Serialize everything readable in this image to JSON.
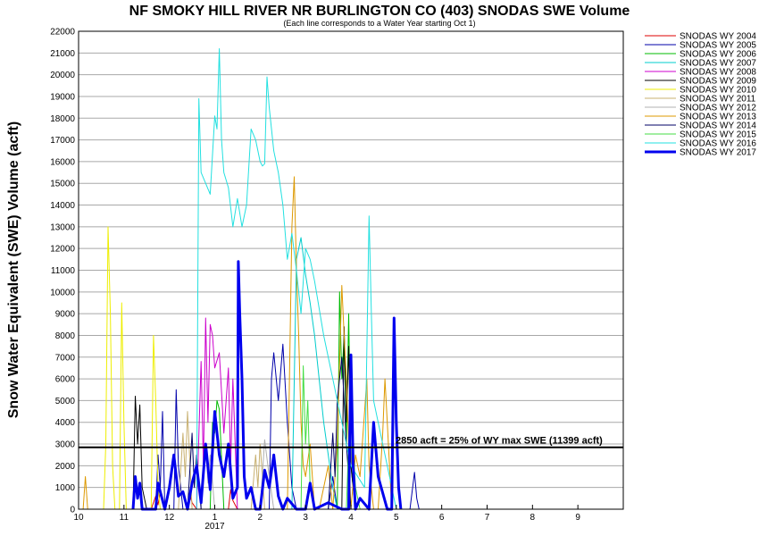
{
  "chart_data": {
    "type": "line",
    "title": "NF SMOKY HILL RIVER NR BURLINGTON CO (403) SNODAS SWE Volume",
    "subtitle": "(Each line corresponds to a Water Year starting Oct 1)",
    "ylabel": "Snow Water Equivalent (SWE) Volume (acft)",
    "xlabel": "",
    "ylim": [
      0,
      22000
    ],
    "xlim": [
      10,
      22
    ],
    "y_ticks": [
      0,
      1000,
      2000,
      3000,
      4000,
      5000,
      6000,
      7000,
      8000,
      9000,
      10000,
      11000,
      12000,
      13000,
      14000,
      15000,
      16000,
      17000,
      18000,
      19000,
      20000,
      21000,
      22000
    ],
    "x_ticks": [
      {
        "x": 10,
        "label": "10"
      },
      {
        "x": 11,
        "label": "11"
      },
      {
        "x": 12,
        "label": "12"
      },
      {
        "x": 13,
        "label": "1"
      },
      {
        "x": 14,
        "label": "2"
      },
      {
        "x": 15,
        "label": "3"
      },
      {
        "x": 16,
        "label": "4"
      },
      {
        "x": 17,
        "label": "5"
      },
      {
        "x": 18,
        "label": "6"
      },
      {
        "x": 19,
        "label": "7"
      },
      {
        "x": 20,
        "label": "8"
      },
      {
        "x": 21,
        "label": "9"
      }
    ],
    "year_label": {
      "x": 13,
      "text": "2017"
    },
    "grid": true,
    "legend_position": "top-right-outside",
    "reference_line": {
      "y": 2850,
      "label": "2850 acft = 25% of WY max SWE (11399 acft)",
      "color": "#000000"
    },
    "series": [
      {
        "name": "SNODAS WY 2004",
        "color": "#dd0000",
        "x": [
          11.6,
          11.7,
          11.75,
          11.8,
          11.9,
          12.4,
          12.45,
          12.5,
          12.6,
          13.3,
          13.35,
          13.4,
          13.5
        ],
        "y": [
          0,
          600,
          200,
          800,
          0,
          0,
          700,
          300,
          0,
          0,
          900,
          400,
          0
        ]
      },
      {
        "name": "SNODAS WY 2005",
        "color": "#0000aa",
        "x": [
          11.7,
          11.75,
          11.8,
          11.85,
          11.9,
          12.1,
          12.15,
          12.2,
          12.3,
          14.2,
          14.25,
          14.3,
          14.4,
          14.5,
          14.6,
          14.7,
          14.8,
          15.5,
          15.6,
          15.7,
          17.3,
          17.4,
          17.45,
          17.5
        ],
        "y": [
          0,
          2500,
          1000,
          4500,
          0,
          0,
          5500,
          2000,
          0,
          0,
          6000,
          7200,
          5000,
          7600,
          4000,
          1000,
          0,
          0,
          1500,
          0,
          0,
          1700,
          500,
          0
        ]
      },
      {
        "name": "SNODAS WY 2006",
        "color": "#00bb00",
        "x": [
          12.9,
          12.95,
          13.0,
          13.05,
          13.1,
          13.2,
          15.7,
          15.75,
          15.8,
          15.85,
          15.9,
          15.95,
          16.0,
          16.1
        ],
        "y": [
          0,
          4000,
          3500,
          5000,
          4600,
          0,
          0,
          10000,
          6000,
          8000,
          3000,
          9000,
          2000,
          0
        ]
      },
      {
        "name": "SNODAS WY 2007",
        "color": "#00cccc",
        "x": [
          14.7,
          14.8,
          14.9,
          15.0,
          15.1,
          15.2,
          15.3,
          15.4,
          15.5,
          15.6,
          15.7
        ],
        "y": [
          0,
          11500,
          12500,
          10800,
          9500,
          8000,
          6000,
          4000,
          2500,
          1000,
          0
        ]
      },
      {
        "name": "SNODAS WY 2008",
        "color": "#cc00cc",
        "x": [
          12.6,
          12.7,
          12.75,
          12.8,
          12.85,
          12.9,
          12.95,
          13.0,
          13.1,
          13.2,
          13.3,
          13.35,
          13.4,
          13.5
        ],
        "y": [
          0,
          6800,
          2000,
          8800,
          4000,
          8500,
          8000,
          6500,
          7200,
          3500,
          6500,
          2000,
          6000,
          0
        ]
      },
      {
        "name": "SNODAS WY 2009",
        "color": "#000000",
        "x": [
          11.2,
          11.25,
          11.3,
          11.35,
          11.4,
          11.5,
          15.8,
          15.85,
          15.9,
          15.95,
          16.0,
          16.1
        ],
        "y": [
          0,
          5200,
          3000,
          4800,
          1000,
          0,
          0,
          8400,
          4000,
          7500,
          2000,
          0
        ]
      },
      {
        "name": "SNODAS WY 2010",
        "color": "#eeee00",
        "x": [
          10.55,
          10.6,
          10.65,
          10.7,
          10.75,
          10.8,
          10.9,
          10.95,
          11.0,
          11.05,
          11.1,
          11.6,
          11.65,
          11.7,
          11.75,
          11.8
        ],
        "y": [
          0,
          3000,
          13000,
          9000,
          2000,
          0,
          0,
          9500,
          4000,
          0,
          0,
          0,
          8000,
          5000,
          1000,
          0
        ]
      },
      {
        "name": "SNODAS WY 2011",
        "color": "#c8b070",
        "x": [
          12.2,
          12.3,
          12.35,
          12.4,
          12.5,
          13.8,
          13.9,
          13.95,
          14.0,
          14.1
        ],
        "y": [
          0,
          3500,
          1500,
          4500,
          0,
          0,
          2500,
          1000,
          3000,
          0
        ]
      },
      {
        "name": "SNODAS WY 2012",
        "color": "#b0b0b0",
        "x": [
          12.7,
          12.8,
          12.85,
          12.9,
          13.0,
          14.0,
          14.1,
          14.2,
          14.3
        ],
        "y": [
          0,
          3000,
          1200,
          2500,
          0,
          0,
          3200,
          1500,
          0
        ]
      },
      {
        "name": "SNODAS WY 2013",
        "color": "#dd9900",
        "x": [
          10.1,
          10.15,
          10.2,
          14.6,
          14.7,
          14.75,
          14.8,
          14.85,
          14.9,
          14.95,
          15.0,
          15.1,
          15.2,
          15.3,
          15.5,
          15.6,
          15.7,
          15.8,
          15.85,
          15.9,
          16.0,
          16.1,
          16.2,
          16.3,
          16.35,
          16.4,
          16.5,
          16.6,
          16.7,
          16.75,
          16.8,
          16.85,
          16.9
        ],
        "y": [
          0,
          1500,
          0,
          0,
          13000,
          15300,
          11000,
          8000,
          4000,
          2000,
          1500,
          3000,
          0,
          0,
          2000,
          0,
          3000,
          10300,
          8000,
          6000,
          0,
          2500,
          1500,
          4500,
          6000,
          2000,
          0,
          0,
          3500,
          6000,
          4000,
          2000,
          0
        ]
      },
      {
        "name": "SNODAS WY 2014",
        "color": "#000066",
        "x": [
          12.4,
          12.5,
          12.55,
          12.6,
          12.7,
          15.5,
          15.6,
          15.65,
          15.7,
          15.8,
          15.9,
          16.0
        ],
        "y": [
          0,
          3500,
          1000,
          2500,
          0,
          0,
          3500,
          1500,
          5000,
          7000,
          3000,
          0
        ]
      },
      {
        "name": "SNODAS WY 2015",
        "color": "#44dd44",
        "x": [
          14.9,
          14.95,
          15.0,
          15.05,
          15.1,
          15.2,
          15.9,
          16.0,
          16.05,
          16.1,
          16.2
        ],
        "y": [
          0,
          6600,
          3000,
          5000,
          1000,
          0,
          0,
          6000,
          3000,
          1000,
          0
        ]
      },
      {
        "name": "SNODAS WY 2016",
        "color": "#22e0e0",
        "x": [
          12.6,
          12.65,
          12.7,
          12.8,
          12.9,
          13.0,
          13.05,
          13.1,
          13.15,
          13.2,
          13.3,
          13.4,
          13.5,
          13.6,
          13.7,
          13.8,
          13.9,
          14.0,
          14.05,
          14.1,
          14.15,
          14.2,
          14.3,
          14.4,
          14.5,
          14.6,
          14.7,
          14.8,
          14.9,
          15.0,
          15.1,
          15.2,
          15.4,
          15.6,
          15.8,
          16.0,
          16.3,
          16.4,
          16.45,
          16.5,
          16.6,
          16.8,
          17.0
        ],
        "y": [
          0,
          18900,
          15500,
          15000,
          14500,
          18100,
          17500,
          21200,
          17000,
          15500,
          14800,
          13000,
          14300,
          13000,
          14000,
          17500,
          17000,
          16000,
          15800,
          15900,
          19900,
          18500,
          16500,
          15500,
          14000,
          11500,
          12700,
          11000,
          9000,
          12000,
          11500,
          10500,
          8000,
          6000,
          4000,
          2000,
          1000,
          13500,
          9000,
          5000,
          4000,
          2000,
          0
        ]
      },
      {
        "name": "SNODAS WY 2017",
        "color": "#0000ee",
        "x": [
          11.2,
          11.25,
          11.3,
          11.35,
          11.4,
          11.7,
          11.75,
          11.8,
          11.9,
          12.0,
          12.1,
          12.2,
          12.3,
          12.4,
          12.5,
          12.6,
          12.7,
          12.8,
          12.9,
          13.0,
          13.1,
          13.2,
          13.3,
          13.4,
          13.5,
          13.52,
          13.55,
          13.6,
          13.65,
          13.7,
          13.8,
          13.9,
          14.0,
          14.1,
          14.2,
          14.3,
          14.4,
          14.5,
          14.6,
          14.8,
          15.0,
          15.1,
          15.2,
          15.5,
          15.8,
          15.95,
          16.0,
          16.05,
          16.1,
          16.2,
          16.4,
          16.5,
          16.6,
          16.8,
          16.9,
          16.95,
          17.0,
          17.05,
          17.1
        ],
        "y": [
          0,
          1500,
          500,
          1200,
          0,
          0,
          1200,
          800,
          0,
          1000,
          2500,
          600,
          800,
          0,
          1200,
          2000,
          300,
          3000,
          900,
          4500,
          2500,
          1500,
          3000,
          500,
          1000,
          11400,
          9000,
          6000,
          1500,
          500,
          1000,
          0,
          0,
          1800,
          1000,
          2500,
          600,
          0,
          500,
          0,
          0,
          1200,
          0,
          300,
          0,
          0,
          7100,
          2000,
          0,
          500,
          0,
          4000,
          1500,
          0,
          0,
          8800,
          4000,
          1000,
          0
        ]
      }
    ]
  }
}
